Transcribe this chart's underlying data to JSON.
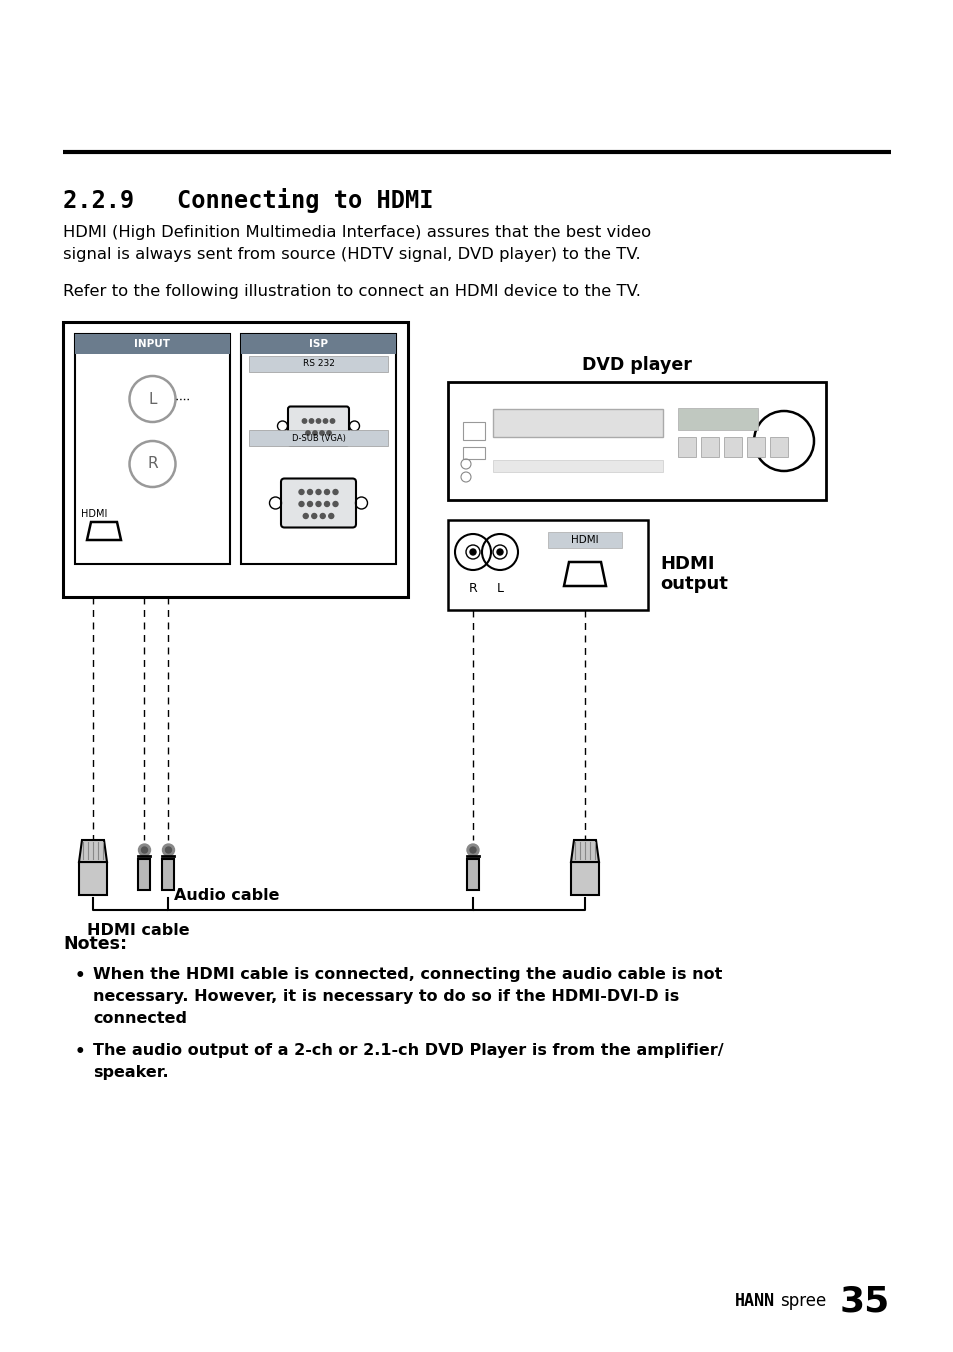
{
  "title": "2.2.9   Connecting to HDMI",
  "body1_line1": "HDMI (High Definition Multimedia Interface) assures that the best video",
  "body1_line2": "signal is always sent from source (HDTV signal, DVD player) to the TV.",
  "body2": "Refer to the following illustration to connect an HDMI device to the TV.",
  "notes_title": "Notes:",
  "note1_line1": "When the HDMI cable is connected, connecting the audio cable is not",
  "note1_line2": "necessary. However, it is necessary to do so if the HDMI-DVI-D is",
  "note1_line3": "connected",
  "note2_line1": "The audio output of a 2-ch or 2.1-ch DVD Player is from the amplifier/",
  "note2_line2": "speaker.",
  "label_dvd": "DVD player",
  "label_hdmi_out1": "HDMI",
  "label_hdmi_out2": "output",
  "label_audio": "Audio cable",
  "label_hdmi_cable": "HDMI cable",
  "footer_hann": "HANN",
  "footer_spree": "spree",
  "footer_num": "35",
  "bg": "#ffffff",
  "black": "#000000",
  "gray_header": "#6b7c8d",
  "gray_light": "#c8cfd6",
  "gray_connector": "#e2e4e6",
  "gray_plug": "#c8c8c8"
}
